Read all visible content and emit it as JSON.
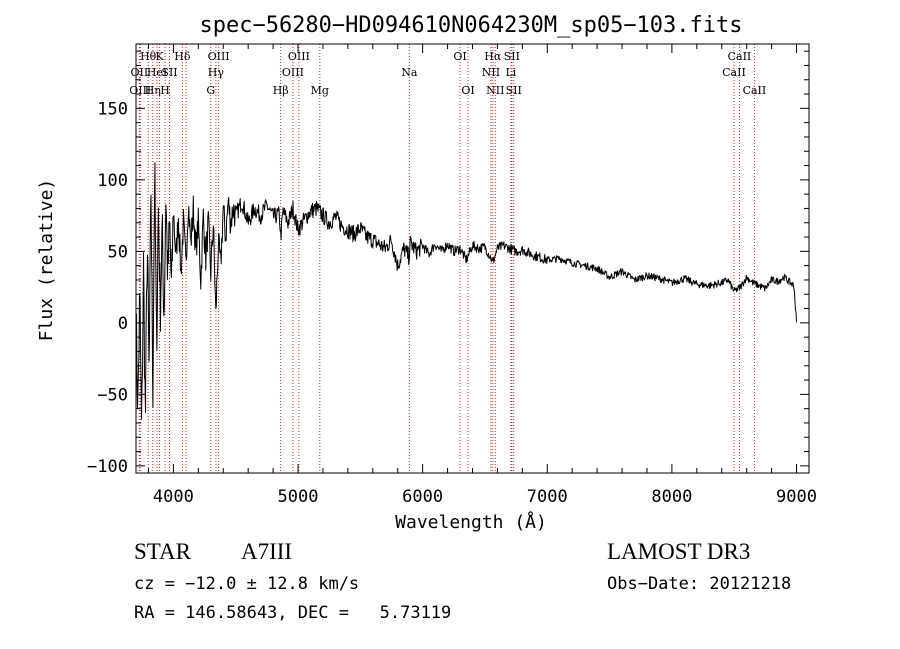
{
  "chart_data": {
    "type": "line",
    "title": "spec−56280−HD094610N064230M_sp05−103.fits",
    "xlabel": "Wavelength (Å)",
    "ylabel": "Flux (relative)",
    "xlim": [
      3700,
      9100
    ],
    "ylim": [
      -105,
      195
    ],
    "xticks": [
      4000,
      5000,
      6000,
      7000,
      8000,
      9000
    ],
    "xtick_labels": [
      "4000",
      "5000",
      "6000",
      "7000",
      "8000",
      "9000"
    ],
    "yticks": [
      -100,
      -50,
      0,
      50,
      100,
      150
    ],
    "ytick_labels": [
      "−100",
      "−50",
      "0",
      "50",
      "100",
      "150"
    ],
    "grid": false,
    "series": [
      {
        "name": "flux",
        "x": [
          3700,
          3715,
          3730,
          3745,
          3760,
          3775,
          3790,
          3805,
          3820,
          3835,
          3850,
          3865,
          3880,
          3895,
          3910,
          3925,
          3940,
          3955,
          3970,
          3985,
          4000,
          4020,
          4040,
          4060,
          4080,
          4100,
          4120,
          4140,
          4160,
          4180,
          4200,
          4220,
          4240,
          4260,
          4280,
          4300,
          4320,
          4340,
          4360,
          4380,
          4400,
          4420,
          4440,
          4460,
          4480,
          4500,
          4550,
          4600,
          4650,
          4700,
          4750,
          4800,
          4850,
          4861,
          4880,
          4920,
          4960,
          5000,
          5050,
          5100,
          5150,
          5200,
          5250,
          5300,
          5350,
          5400,
          5450,
          5500,
          5550,
          5600,
          5650,
          5700,
          5750,
          5800,
          5850,
          5890,
          5900,
          5950,
          6000,
          6050,
          6100,
          6150,
          6200,
          6250,
          6300,
          6350,
          6400,
          6450,
          6500,
          6550,
          6563,
          6600,
          6650,
          6700,
          6750,
          6800,
          6900,
          7000,
          7100,
          7200,
          7300,
          7400,
          7500,
          7600,
          7700,
          7800,
          7900,
          8000,
          8100,
          8200,
          8300,
          8400,
          8450,
          8500,
          8550,
          8600,
          8650,
          8700,
          8750,
          8800,
          8850,
          8900,
          8950,
          8980,
          9000
        ],
        "y": [
          5,
          -60,
          20,
          -80,
          40,
          -70,
          60,
          -40,
          95,
          -55,
          110,
          -20,
          80,
          10,
          65,
          5,
          90,
          30,
          70,
          20,
          80,
          45,
          75,
          35,
          70,
          40,
          85,
          55,
          80,
          50,
          70,
          30,
          75,
          45,
          70,
          35,
          70,
          5,
          55,
          40,
          80,
          60,
          85,
          70,
          80,
          75,
          85,
          70,
          80,
          75,
          82,
          74,
          76,
          60,
          78,
          70,
          80,
          65,
          72,
          78,
          80,
          75,
          70,
          74,
          68,
          65,
          62,
          66,
          60,
          58,
          55,
          52,
          58,
          40,
          52,
          46,
          56,
          50,
          54,
          48,
          55,
          50,
          55,
          50,
          52,
          44,
          54,
          52,
          53,
          45,
          42,
          52,
          54,
          52,
          50,
          51,
          47,
          44,
          45,
          42,
          40,
          38,
          32,
          36,
          30,
          33,
          31,
          28,
          31,
          27,
          26,
          28,
          30,
          22,
          25,
          32,
          28,
          26,
          24,
          30,
          29,
          32,
          28,
          26,
          0
        ]
      }
    ],
    "lines": [
      {
        "wavelength": 3727,
        "label": "OII",
        "row": 2
      },
      {
        "wavelength": 3734,
        "label": "OIII",
        "row": 3
      },
      {
        "wavelength": 3798,
        "label": "Hθ",
        "row": 1
      },
      {
        "wavelength": 3835,
        "label": "Hη",
        "row": 3
      },
      {
        "wavelength": 3869,
        "label": "HeI",
        "row": 2
      },
      {
        "wavelength": 3889,
        "label": "K",
        "row": 1
      },
      {
        "wavelength": 3933,
        "label": "H",
        "row": 3
      },
      {
        "wavelength": 3969,
        "label": "SII",
        "row": 2
      },
      {
        "wavelength": 4072,
        "label": "Hδ",
        "row": 1
      },
      {
        "wavelength": 4102,
        "label": "",
        "row": 0
      },
      {
        "wavelength": 4300,
        "label": "G",
        "row": 3
      },
      {
        "wavelength": 4341,
        "label": "Hγ",
        "row": 2
      },
      {
        "wavelength": 4363,
        "label": "OIII",
        "row": 1
      },
      {
        "wavelength": 4861,
        "label": "Hβ",
        "row": 3
      },
      {
        "wavelength": 4959,
        "label": "OIII",
        "row": 2
      },
      {
        "wavelength": 5007,
        "label": "OIII",
        "row": 1
      },
      {
        "wavelength": 5175,
        "label": "Mg",
        "row": 3
      },
      {
        "wavelength": 5893,
        "label": "Na",
        "row": 2
      },
      {
        "wavelength": 6300,
        "label": "OI",
        "row": 1
      },
      {
        "wavelength": 6364,
        "label": "OI",
        "row": 3
      },
      {
        "wavelength": 6548,
        "label": "NII",
        "row": 2
      },
      {
        "wavelength": 6563,
        "label": "Hα",
        "row": 1
      },
      {
        "wavelength": 6583,
        "label": "NII",
        "row": 3
      },
      {
        "wavelength": 6708,
        "label": "Li",
        "row": 2
      },
      {
        "wavelength": 6716,
        "label": "SII",
        "row": 1
      },
      {
        "wavelength": 6731,
        "label": "SII",
        "row": 3
      },
      {
        "wavelength": 8498,
        "label": "CaII",
        "row": 2
      },
      {
        "wavelength": 8542,
        "label": "CaII",
        "row": 1
      },
      {
        "wavelength": 8662,
        "label": "CaII",
        "row": 3
      }
    ]
  },
  "info": {
    "object_class": "STAR",
    "subclass": "A7III",
    "survey": "LAMOST DR3",
    "redshift": "cz = −12.0 ± 12.8 km/s",
    "obs_date": "Obs−Date: 20121218",
    "coordinates": "RA = 146.58643, DEC =   5.73119"
  },
  "colors": {
    "spectrum": "#000000",
    "line_markers": "#c03028",
    "axis": "#000000"
  }
}
